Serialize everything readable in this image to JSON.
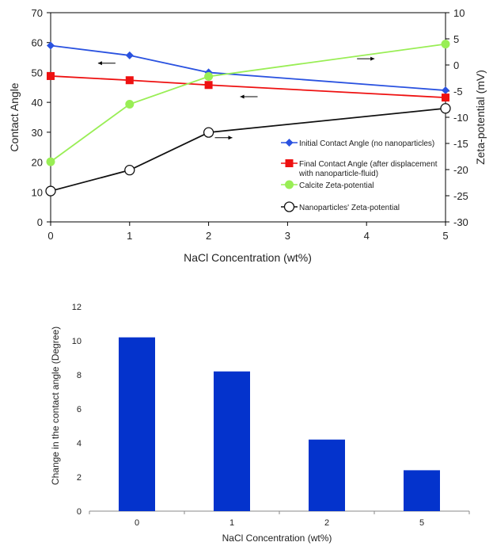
{
  "chart_data": [
    {
      "type": "line",
      "xlabel": "NaCl Concentration (wt%)",
      "ylabel": "Contact Angle",
      "y2label": "Zeta-potential (mV)",
      "xlim": [
        0,
        5
      ],
      "ylim": [
        0,
        70
      ],
      "y2lim": [
        -30,
        10
      ],
      "x_ticks": [
        0,
        1,
        2,
        3,
        4,
        5
      ],
      "y_ticks": [
        0,
        10,
        20,
        30,
        40,
        50,
        60,
        70
      ],
      "y2_ticks": [
        -30,
        -25,
        -20,
        -15,
        -10,
        -5,
        0,
        5,
        10
      ],
      "series": [
        {
          "name": "Initial Contact Angle (no nanoparticles)",
          "axis": "left",
          "x": [
            0,
            1,
            2,
            5
          ],
          "y": [
            59,
            55.7,
            50,
            44
          ],
          "color": "#2a52e0",
          "marker": "diamond"
        },
        {
          "name": "Final Contact Angle (after displacement",
          "name2": "with nanoparticle-fluid)",
          "axis": "left",
          "x": [
            0,
            1,
            2,
            5
          ],
          "y": [
            48.8,
            47.4,
            45.8,
            41.6
          ],
          "color": "#ee1111",
          "marker": "square"
        },
        {
          "name": "Calcite Zeta-potential",
          "axis": "right",
          "x": [
            0,
            1,
            2,
            5
          ],
          "y": [
            -18.5,
            -7.5,
            -2.2,
            4
          ],
          "color": "#99ee55",
          "marker": "circle"
        },
        {
          "name": "Nanoparticles' Zeta-potential",
          "axis": "right",
          "x": [
            0,
            1,
            2,
            5
          ],
          "y": [
            -24.1,
            -20.1,
            -12.9,
            -8.3
          ],
          "color": "#111111",
          "marker": "open-circle"
        }
      ],
      "annotations": [
        {
          "type": "arrow",
          "direction": "left",
          "x": 0.6,
          "y": 53.1,
          "axis": "left"
        },
        {
          "type": "arrow",
          "direction": "left",
          "x": 2.4,
          "y": 41.9,
          "axis": "left"
        },
        {
          "type": "arrow",
          "direction": "right",
          "x": 4.1,
          "y": 1.2,
          "axis": "right"
        },
        {
          "type": "arrow",
          "direction": "right",
          "x": 2.3,
          "y": -13.9,
          "axis": "right"
        }
      ]
    },
    {
      "type": "bar",
      "categories": [
        "0",
        "1",
        "2",
        "5"
      ],
      "values": [
        10.2,
        8.2,
        4.2,
        2.4
      ],
      "xlabel": "NaCl Concentration (wt%)",
      "ylabel": "Change in the contact angle (Degree)",
      "ylim": [
        0,
        12
      ],
      "y_ticks": [
        0,
        2,
        4,
        6,
        8,
        10,
        12
      ],
      "color": "#0433cc"
    }
  ]
}
